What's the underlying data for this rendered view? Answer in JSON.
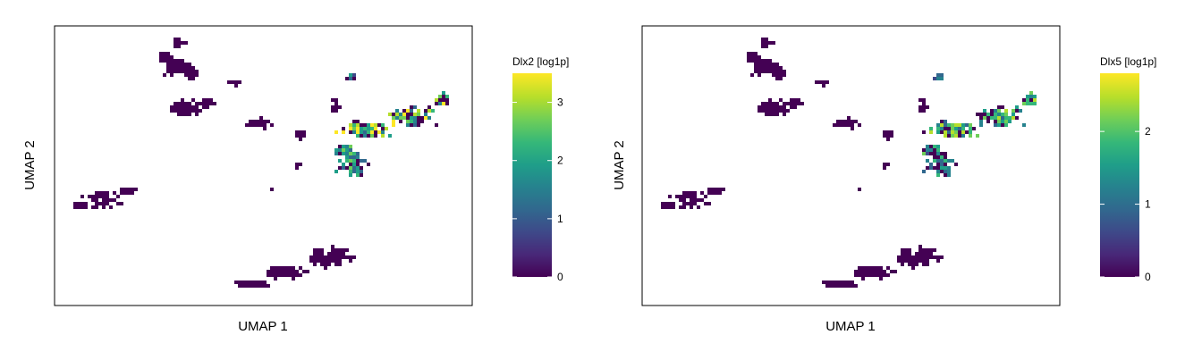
{
  "colormap": [
    "#440154",
    "#482878",
    "#3e4989",
    "#31688e",
    "#26828e",
    "#1f9e89",
    "#35b779",
    "#6ece58",
    "#b5de2b",
    "#fde725"
  ],
  "chart_data": [
    {
      "type": "scatter",
      "xlabel": "UMAP 1",
      "ylabel": "UMAP 2",
      "colorbar": {
        "title": "Dlx2 [log1p]",
        "ticks": [
          "0",
          "1",
          "2",
          "3"
        ],
        "range": [
          0,
          3.5
        ]
      },
      "grid": false,
      "clusters": [
        {
          "region": "top-left",
          "expression": "none"
        },
        {
          "region": "upper-middle chain",
          "expression": "none"
        },
        {
          "region": "far-left",
          "expression": "none"
        },
        {
          "region": "bottom-center",
          "expression": "none"
        },
        {
          "region": "right branch",
          "expression": "high, up to ~3.5 log1p"
        }
      ]
    },
    {
      "type": "scatter",
      "xlabel": "UMAP 1",
      "ylabel": "UMAP 2",
      "colorbar": {
        "title": "Dlx5 [log1p]",
        "ticks": [
          "0",
          "1",
          "2"
        ],
        "range": [
          0,
          2.8
        ]
      },
      "grid": false,
      "clusters": [
        {
          "region": "top-left",
          "expression": "none"
        },
        {
          "region": "upper-middle chain",
          "expression": "none"
        },
        {
          "region": "far-left",
          "expression": "none"
        },
        {
          "region": "bottom-center",
          "expression": "none"
        },
        {
          "region": "right branch",
          "expression": "moderate, up to ~2.8 log1p"
        }
      ]
    }
  ]
}
